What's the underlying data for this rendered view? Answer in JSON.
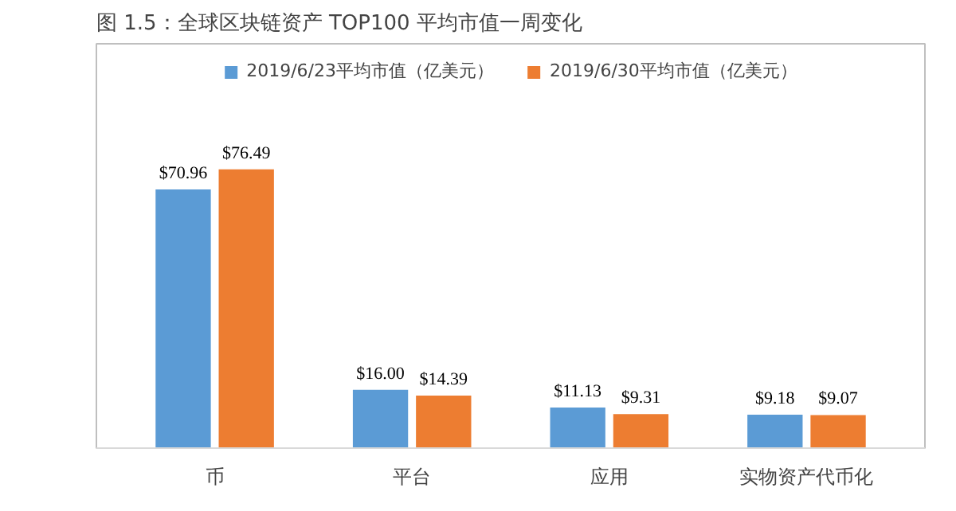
{
  "chart_data": {
    "type": "bar",
    "title": "图 1.5：全球区块链资产 TOP100 平均市值一周变化",
    "categories": [
      "币",
      "平台",
      "应用",
      "实物资产代币化"
    ],
    "legend": "top",
    "grid": false,
    "series": [
      {
        "name": "2019/6/23平均市值（亿美元）",
        "color": "#5b9bd5",
        "values": [
          70.96,
          16.0,
          11.13,
          9.18
        ],
        "value_labels": [
          "$70.96",
          "$16.00",
          "$11.13",
          "$9.18"
        ]
      },
      {
        "name": "2019/6/30平均市值（亿美元）",
        "color": "#ed7d31",
        "values": [
          76.49,
          14.39,
          9.31,
          9.07
        ],
        "value_labels": [
          "$76.49",
          "$14.39",
          "$9.31",
          "$9.07"
        ]
      }
    ]
  }
}
